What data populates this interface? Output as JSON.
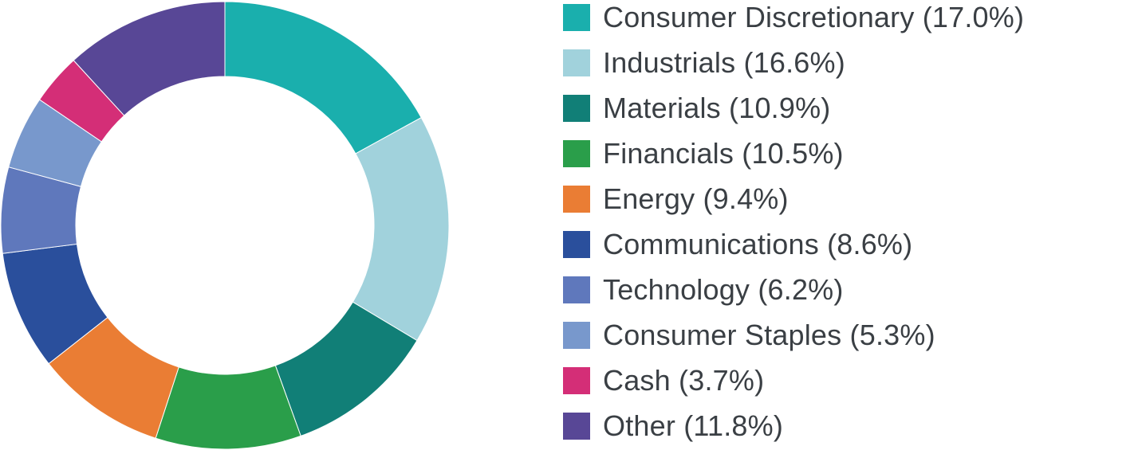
{
  "chart_data": {
    "type": "pie",
    "variant": "donut",
    "title": "",
    "legend_position": "right",
    "slices": [
      {
        "name": "Consumer Discretionary",
        "value": 17.0,
        "label": "Consumer Discretionary (17.0%)",
        "color": "#1aafad"
      },
      {
        "name": "Industrials",
        "value": 16.6,
        "label": "Industrials (16.6%)",
        "color": "#a1d2dc"
      },
      {
        "name": "Materials",
        "value": 10.9,
        "label": "Materials (10.9%)",
        "color": "#117f77"
      },
      {
        "name": "Financials",
        "value": 10.5,
        "label": "Financials (10.5%)",
        "color": "#2a9e4a"
      },
      {
        "name": "Energy",
        "value": 9.4,
        "label": "Energy (9.4%)",
        "color": "#ea7d34"
      },
      {
        "name": "Communications",
        "value": 8.6,
        "label": "Communications (8.6%)",
        "color": "#2a4f9c"
      },
      {
        "name": "Technology",
        "value": 6.2,
        "label": "Technology (6.2%)",
        "color": "#5f78bc"
      },
      {
        "name": "Consumer Staples",
        "value": 5.3,
        "label": "Consumer Staples (5.3%)",
        "color": "#7898cc"
      },
      {
        "name": "Cash",
        "value": 3.7,
        "label": "Cash (3.7%)",
        "color": "#d42e77"
      },
      {
        "name": "Other",
        "value": 11.8,
        "label": "Other (11.8%)",
        "color": "#584796"
      }
    ]
  }
}
